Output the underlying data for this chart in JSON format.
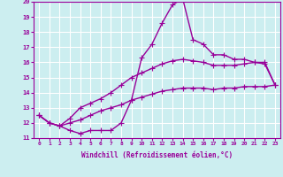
{
  "xlabel": "Windchill (Refroidissement éolien,°C)",
  "xlim": [
    -0.5,
    23.5
  ],
  "ylim": [
    11,
    20
  ],
  "xticks": [
    0,
    1,
    2,
    3,
    4,
    5,
    6,
    7,
    8,
    9,
    10,
    11,
    12,
    13,
    14,
    15,
    16,
    17,
    18,
    19,
    20,
    21,
    22,
    23
  ],
  "yticks": [
    11,
    12,
    13,
    14,
    15,
    16,
    17,
    18,
    19,
    20
  ],
  "bg_color": "#cceef0",
  "grid_color": "#ffffff",
  "line_color": "#990099",
  "line_width": 1.0,
  "marker": "+",
  "marker_size": 4,
  "series": [
    [
      12.5,
      12.0,
      11.8,
      11.5,
      11.3,
      11.5,
      11.5,
      11.5,
      12.0,
      13.5,
      16.3,
      17.2,
      18.6,
      19.8,
      20.2,
      17.5,
      17.2,
      16.5,
      16.5,
      16.2,
      16.2,
      16.0,
      15.9,
      14.5
    ],
    [
      12.5,
      12.0,
      11.8,
      12.3,
      13.0,
      13.3,
      13.6,
      14.0,
      14.5,
      15.0,
      15.3,
      15.6,
      15.9,
      16.1,
      16.2,
      16.1,
      16.0,
      15.8,
      15.8,
      15.8,
      15.9,
      16.0,
      16.0,
      14.5
    ],
    [
      12.5,
      12.0,
      11.8,
      12.0,
      12.2,
      12.5,
      12.8,
      13.0,
      13.2,
      13.5,
      13.7,
      13.9,
      14.1,
      14.2,
      14.3,
      14.3,
      14.3,
      14.2,
      14.3,
      14.3,
      14.4,
      14.4,
      14.4,
      14.5
    ]
  ]
}
